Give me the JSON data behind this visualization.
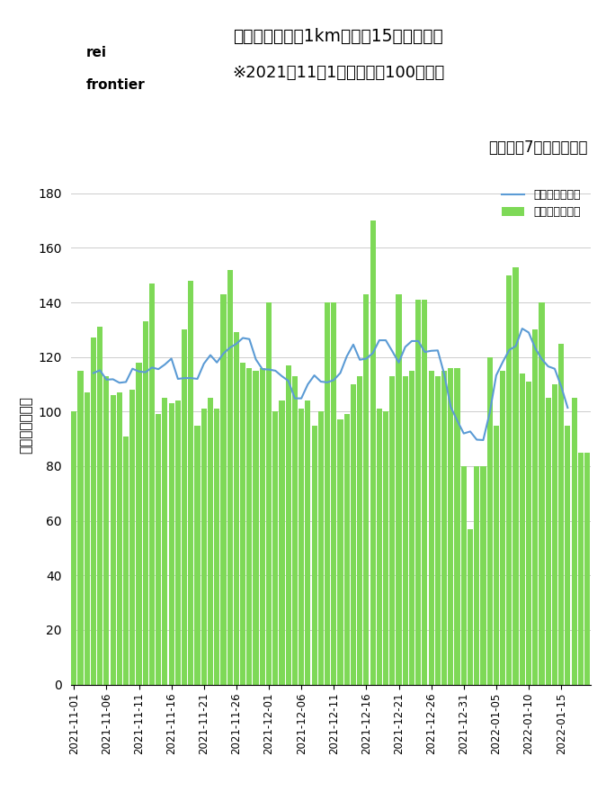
{
  "title_line1": "新宿駅から半径1km以内の15時台の人出",
  "title_line2": "※2021年11月1日の人数を100とする",
  "subtitle": "ラインは7日間移動平均",
  "ylabel": "人数（相対値）",
  "legend_line": "人数（相対値）",
  "legend_bar": "人数（相対値）",
  "ylim": [
    0,
    190
  ],
  "yticks": [
    0,
    20,
    40,
    60,
    80,
    100,
    120,
    140,
    160,
    180
  ],
  "bar_color": "#7ED957",
  "line_color": "#5B9BD5",
  "background_color": "#FFFFFF",
  "dates": [
    "2021-11-01",
    "2021-11-02",
    "2021-11-03",
    "2021-11-04",
    "2021-11-05",
    "2021-11-06",
    "2021-11-07",
    "2021-11-08",
    "2021-11-09",
    "2021-11-10",
    "2021-11-11",
    "2021-11-12",
    "2021-11-13",
    "2021-11-14",
    "2021-11-15",
    "2021-11-16",
    "2021-11-17",
    "2021-11-18",
    "2021-11-19",
    "2021-11-20",
    "2021-11-21",
    "2021-11-22",
    "2021-11-23",
    "2021-11-24",
    "2021-11-25",
    "2021-11-26",
    "2021-11-27",
    "2021-11-28",
    "2021-11-29",
    "2021-11-30",
    "2021-12-01",
    "2021-12-02",
    "2021-12-03",
    "2021-12-04",
    "2021-12-05",
    "2021-12-06",
    "2021-12-07",
    "2021-12-08",
    "2021-12-09",
    "2021-12-10",
    "2021-12-11",
    "2021-12-12",
    "2021-12-13",
    "2021-12-14",
    "2021-12-15",
    "2021-12-16",
    "2021-12-17",
    "2021-12-18",
    "2021-12-19",
    "2021-12-20",
    "2021-12-21",
    "2021-12-22",
    "2021-12-23",
    "2021-12-24",
    "2021-12-25",
    "2021-12-26",
    "2021-12-27",
    "2021-12-28",
    "2021-12-29",
    "2021-12-30",
    "2021-12-31",
    "2022-01-01",
    "2022-01-02",
    "2022-01-03",
    "2022-01-04",
    "2022-01-05",
    "2022-01-06",
    "2022-01-07",
    "2022-01-08",
    "2022-01-09",
    "2022-01-10",
    "2022-01-11",
    "2022-01-12",
    "2022-01-13",
    "2022-01-14",
    "2022-01-15",
    "2022-01-16",
    "2022-01-17",
    "2022-01-18",
    "2022-01-19"
  ],
  "bar_values": [
    100,
    115,
    107,
    127,
    131,
    113,
    106,
    107,
    91,
    108,
    118,
    133,
    147,
    99,
    105,
    103,
    104,
    130,
    148,
    95,
    101,
    105,
    101,
    143,
    152,
    129,
    118,
    116,
    115,
    116,
    140,
    100,
    104,
    117,
    113,
    101,
    104,
    95,
    100,
    140,
    140,
    97,
    99,
    110,
    113,
    143,
    170,
    101,
    100,
    113,
    143,
    113,
    115,
    141,
    141,
    115,
    113,
    115,
    116,
    116,
    80,
    57,
    80,
    80,
    120,
    95,
    115,
    150,
    153,
    114,
    111,
    130,
    140,
    105,
    110,
    125,
    95,
    105,
    85,
    85
  ],
  "xtick_labels": [
    "2021-11-01",
    "2021-11-06",
    "2021-11-11",
    "2021-11-16",
    "2021-11-21",
    "2021-11-26",
    "2021-12-01",
    "2021-12-06",
    "2021-12-11",
    "2021-12-16",
    "2021-12-21",
    "2021-12-26",
    "2021-12-31",
    "2022-01-05",
    "2022-01-10",
    "2022-01-15"
  ],
  "logo_text1": "rei",
  "logo_text2": "frontier"
}
